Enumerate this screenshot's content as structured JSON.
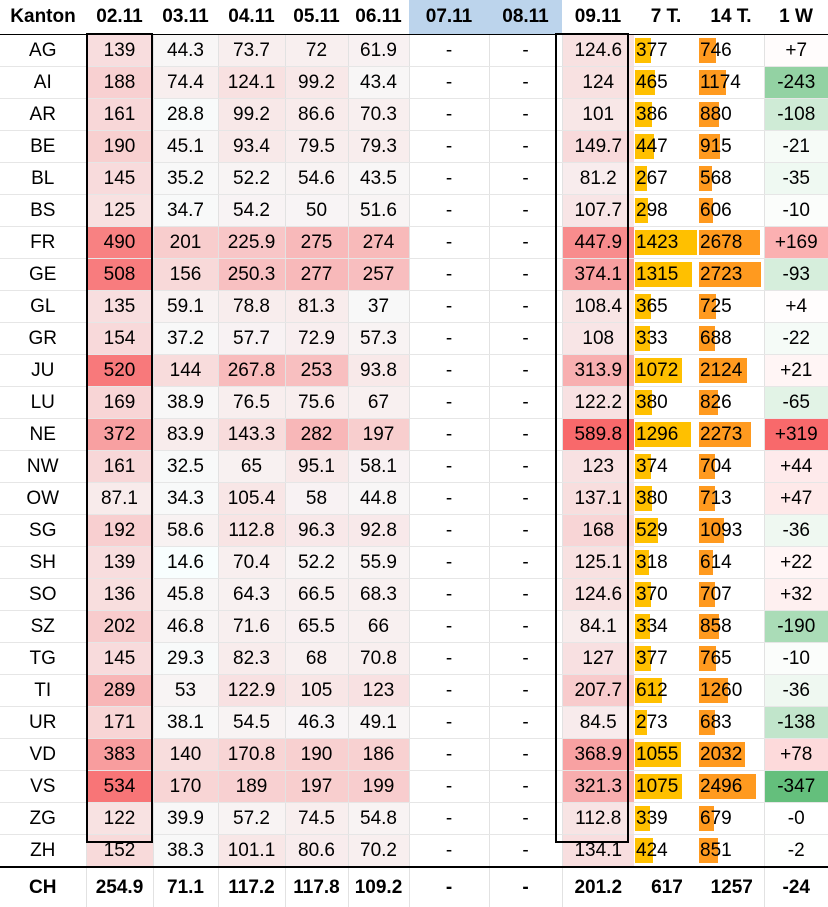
{
  "chart_data": {
    "type": "table",
    "columns": [
      "Kanton",
      "02.11",
      "03.11",
      "04.11",
      "05.11",
      "06.11",
      "07.11",
      "08.11",
      "09.11",
      "7 T.",
      "14 T.",
      "1 W"
    ],
    "weekend_columns": [
      "07.11",
      "08.11"
    ],
    "rows": [
      {
        "kanton": "AG",
        "d1": "139",
        "d2": "44.3",
        "d3": "73.7",
        "d4": "72",
        "d5": "61.9",
        "d6": "-",
        "d7": "-",
        "d8": "124.6",
        "t7": "377",
        "t14": "746",
        "w1": "+7"
      },
      {
        "kanton": "AI",
        "d1": "188",
        "d2": "74.4",
        "d3": "124.1",
        "d4": "99.2",
        "d5": "43.4",
        "d6": "-",
        "d7": "-",
        "d8": "124",
        "t7": "465",
        "t14": "1174",
        "w1": "-243"
      },
      {
        "kanton": "AR",
        "d1": "161",
        "d2": "28.8",
        "d3": "99.2",
        "d4": "86.6",
        "d5": "70.3",
        "d6": "-",
        "d7": "-",
        "d8": "101",
        "t7": "386",
        "t14": "880",
        "w1": "-108"
      },
      {
        "kanton": "BE",
        "d1": "190",
        "d2": "45.1",
        "d3": "93.4",
        "d4": "79.5",
        "d5": "79.3",
        "d6": "-",
        "d7": "-",
        "d8": "149.7",
        "t7": "447",
        "t14": "915",
        "w1": "-21"
      },
      {
        "kanton": "BL",
        "d1": "145",
        "d2": "35.2",
        "d3": "52.2",
        "d4": "54.6",
        "d5": "43.5",
        "d6": "-",
        "d7": "-",
        "d8": "81.2",
        "t7": "267",
        "t14": "568",
        "w1": "-35"
      },
      {
        "kanton": "BS",
        "d1": "125",
        "d2": "34.7",
        "d3": "54.2",
        "d4": "50",
        "d5": "51.6",
        "d6": "-",
        "d7": "-",
        "d8": "107.7",
        "t7": "298",
        "t14": "606",
        "w1": "-10"
      },
      {
        "kanton": "FR",
        "d1": "490",
        "d2": "201",
        "d3": "225.9",
        "d4": "275",
        "d5": "274",
        "d6": "-",
        "d7": "-",
        "d8": "447.9",
        "t7": "1423",
        "t14": "2678",
        "w1": "+169"
      },
      {
        "kanton": "GE",
        "d1": "508",
        "d2": "156",
        "d3": "250.3",
        "d4": "277",
        "d5": "257",
        "d6": "-",
        "d7": "-",
        "d8": "374.1",
        "t7": "1315",
        "t14": "2723",
        "w1": "-93"
      },
      {
        "kanton": "GL",
        "d1": "135",
        "d2": "59.1",
        "d3": "78.8",
        "d4": "81.3",
        "d5": "37",
        "d6": "-",
        "d7": "-",
        "d8": "108.4",
        "t7": "365",
        "t14": "725",
        "w1": "+4"
      },
      {
        "kanton": "GR",
        "d1": "154",
        "d2": "37.2",
        "d3": "57.7",
        "d4": "72.9",
        "d5": "57.3",
        "d6": "-",
        "d7": "-",
        "d8": "108",
        "t7": "333",
        "t14": "688",
        "w1": "-22"
      },
      {
        "kanton": "JU",
        "d1": "520",
        "d2": "144",
        "d3": "267.8",
        "d4": "253",
        "d5": "93.8",
        "d6": "-",
        "d7": "-",
        "d8": "313.9",
        "t7": "1072",
        "t14": "2124",
        "w1": "+21"
      },
      {
        "kanton": "LU",
        "d1": "169",
        "d2": "38.9",
        "d3": "76.5",
        "d4": "75.6",
        "d5": "67",
        "d6": "-",
        "d7": "-",
        "d8": "122.2",
        "t7": "380",
        "t14": "826",
        "w1": "-65"
      },
      {
        "kanton": "NE",
        "d1": "372",
        "d2": "83.9",
        "d3": "143.3",
        "d4": "282",
        "d5": "197",
        "d6": "-",
        "d7": "-",
        "d8": "589.8",
        "t7": "1296",
        "t14": "2273",
        "w1": "+319"
      },
      {
        "kanton": "NW",
        "d1": "161",
        "d2": "32.5",
        "d3": "65",
        "d4": "95.1",
        "d5": "58.1",
        "d6": "-",
        "d7": "-",
        "d8": "123",
        "t7": "374",
        "t14": "704",
        "w1": "+44"
      },
      {
        "kanton": "OW",
        "d1": "87.1",
        "d2": "34.3",
        "d3": "105.4",
        "d4": "58",
        "d5": "44.8",
        "d6": "-",
        "d7": "-",
        "d8": "137.1",
        "t7": "380",
        "t14": "713",
        "w1": "+47"
      },
      {
        "kanton": "SG",
        "d1": "192",
        "d2": "58.6",
        "d3": "112.8",
        "d4": "96.3",
        "d5": "92.8",
        "d6": "-",
        "d7": "-",
        "d8": "168",
        "t7": "529",
        "t14": "1093",
        "w1": "-36"
      },
      {
        "kanton": "SH",
        "d1": "139",
        "d2": "14.6",
        "d3": "70.4",
        "d4": "52.2",
        "d5": "55.9",
        "d6": "-",
        "d7": "-",
        "d8": "125.1",
        "t7": "318",
        "t14": "614",
        "w1": "+22"
      },
      {
        "kanton": "SO",
        "d1": "136",
        "d2": "45.8",
        "d3": "64.3",
        "d4": "66.5",
        "d5": "68.3",
        "d6": "-",
        "d7": "-",
        "d8": "124.6",
        "t7": "370",
        "t14": "707",
        "w1": "+32"
      },
      {
        "kanton": "SZ",
        "d1": "202",
        "d2": "46.8",
        "d3": "71.6",
        "d4": "65.5",
        "d5": "66",
        "d6": "-",
        "d7": "-",
        "d8": "84.1",
        "t7": "334",
        "t14": "858",
        "w1": "-190"
      },
      {
        "kanton": "TG",
        "d1": "145",
        "d2": "29.3",
        "d3": "82.3",
        "d4": "68",
        "d5": "70.8",
        "d6": "-",
        "d7": "-",
        "d8": "127",
        "t7": "377",
        "t14": "765",
        "w1": "-10"
      },
      {
        "kanton": "TI",
        "d1": "289",
        "d2": "53",
        "d3": "122.9",
        "d4": "105",
        "d5": "123",
        "d6": "-",
        "d7": "-",
        "d8": "207.7",
        "t7": "612",
        "t14": "1260",
        "w1": "-36"
      },
      {
        "kanton": "UR",
        "d1": "171",
        "d2": "38.1",
        "d3": "54.5",
        "d4": "46.3",
        "d5": "49.1",
        "d6": "-",
        "d7": "-",
        "d8": "84.5",
        "t7": "273",
        "t14": "683",
        "w1": "-138"
      },
      {
        "kanton": "VD",
        "d1": "383",
        "d2": "140",
        "d3": "170.8",
        "d4": "190",
        "d5": "186",
        "d6": "-",
        "d7": "-",
        "d8": "368.9",
        "t7": "1055",
        "t14": "2032",
        "w1": "+78"
      },
      {
        "kanton": "VS",
        "d1": "534",
        "d2": "170",
        "d3": "189",
        "d4": "197",
        "d5": "199",
        "d6": "-",
        "d7": "-",
        "d8": "321.3",
        "t7": "1075",
        "t14": "2496",
        "w1": "-347"
      },
      {
        "kanton": "ZG",
        "d1": "122",
        "d2": "39.9",
        "d3": "57.2",
        "d4": "74.5",
        "d5": "54.8",
        "d6": "-",
        "d7": "-",
        "d8": "112.8",
        "t7": "339",
        "t14": "679",
        "w1": "-0"
      },
      {
        "kanton": "ZH",
        "d1": "152",
        "d2": "38.3",
        "d3": "101.1",
        "d4": "80.6",
        "d5": "70.2",
        "d6": "-",
        "d7": "-",
        "d8": "134.1",
        "t7": "424",
        "t14": "851",
        "w1": "-2"
      }
    ],
    "total": {
      "kanton": "CH",
      "d1": "254.9",
      "d2": "71.1",
      "d3": "117.2",
      "d4": "117.8",
      "d5": "109.2",
      "d6": "-",
      "d7": "-",
      "d8": "201.2",
      "t7": "617",
      "t14": "1257",
      "w1": "-24"
    },
    "colors": {
      "heat_high": "#f8696b",
      "heat_low": "#ffffff",
      "bar_7t": "#ffc000",
      "bar_14t": "#ff9a1f",
      "change_up": "#f8696b",
      "change_down": "#63be7b",
      "weekend_header": "#bcd4ec"
    }
  }
}
